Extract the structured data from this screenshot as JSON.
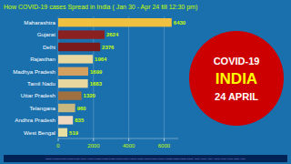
{
  "chart_data": {
    "type": "bar",
    "orientation": "horizontal",
    "title": "How COVID-19 cases Spread in India  ( Jan 30 - Apr 24 till 12:30 pm)",
    "categories": [
      "Maharashtra",
      "Gujarat",
      "Delhi",
      "Rajasthan",
      "Madhya Pradesh",
      "Tamil Nadu",
      "Uttar Pradesh",
      "Telangana",
      "Andhra Pradesh",
      "West Bengal"
    ],
    "values": [
      6430,
      2624,
      2376,
      1964,
      1699,
      1683,
      1320,
      960,
      835,
      519
    ],
    "colors": [
      "#f0c040",
      "#8b2020",
      "#7a1a1a",
      "#e8d8a0",
      "#d4a060",
      "#e8d8a0",
      "#a07040",
      "#c8b880",
      "#f0d8c0",
      "#e8e0a0"
    ],
    "xlim": [
      0,
      6800
    ],
    "xticks": [
      0,
      2000,
      4000,
      6000
    ],
    "grid": true,
    "data_labels": true,
    "annotations": [
      "COVID-19",
      "INDIA",
      "24 APRIL",
      "Jan30  Feb02  Feb05  Feb08  Feb11  Feb14  Feb17  Feb20  Feb23  Feb26  Mar01  Mar04  Mar07  Mar10  Mar13  Mar16  Mar19  Mar22  Mar25  Mar28  Mar31  Apr03  Apr06  Apr09  Apr12  Apr15  Apr18  Apr21  Apr24"
    ]
  }
}
